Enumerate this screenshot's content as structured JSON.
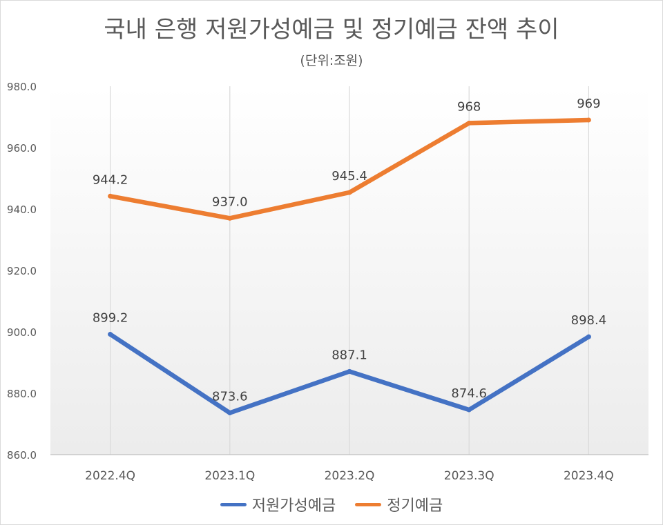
{
  "chart_data": {
    "type": "line",
    "title": "국내 은행 저원가성예금 및 정기예금 잔액 추이",
    "subtitle": "(단위:조원)",
    "categories": [
      "2022.4Q",
      "2023.1Q",
      "2023.2Q",
      "2023.3Q",
      "2023.4Q"
    ],
    "ylim": [
      860,
      980
    ],
    "yticks": [
      "860.0",
      "880.0",
      "900.0",
      "920.0",
      "940.0",
      "960.0",
      "980.0"
    ],
    "grid": "vertical",
    "legend_position": "bottom",
    "series": [
      {
        "name": "저원가성예금",
        "color": "#4472c4",
        "values": [
          899.2,
          873.6,
          887.1,
          874.6,
          898.4
        ],
        "labels": [
          "899.2",
          "873.6",
          "887.1",
          "874.6",
          "898.4"
        ]
      },
      {
        "name": "정기예금",
        "color": "#ed7d31",
        "values": [
          944.2,
          937.0,
          945.4,
          968,
          969
        ],
        "labels": [
          "944.2",
          "937.0",
          "945.4",
          "968",
          "969"
        ]
      }
    ]
  }
}
